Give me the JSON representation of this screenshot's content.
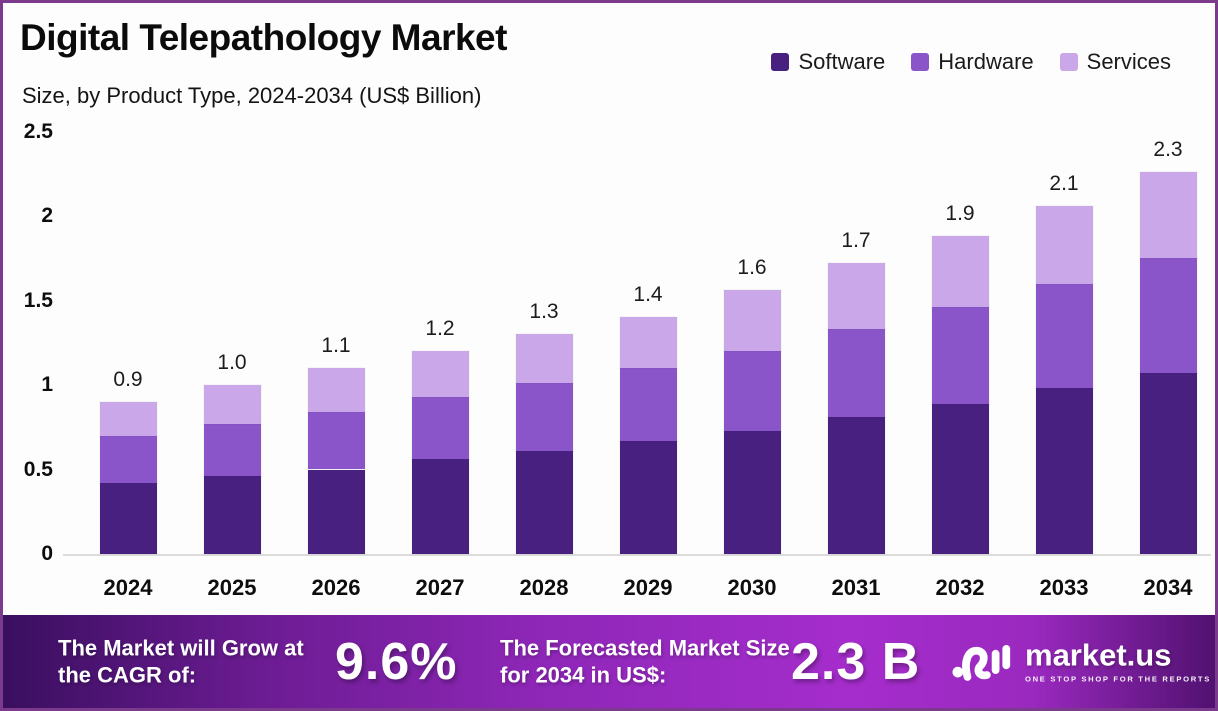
{
  "header": {
    "title": "Digital Telepathology Market",
    "subtitle": "Size, by Product Type, 2024-2034 (US$ Billion)"
  },
  "chart_data": {
    "type": "bar",
    "stacked": true,
    "title": "Digital Telepathology Market Size, by Product Type, 2024-2034 (US$ Billion)",
    "categories": [
      "2024",
      "2025",
      "2026",
      "2027",
      "2028",
      "2029",
      "2030",
      "2031",
      "2032",
      "2033",
      "2034"
    ],
    "series": [
      {
        "name": "Software",
        "color": "#48207f",
        "values": [
          0.42,
          0.46,
          0.5,
          0.56,
          0.61,
          0.67,
          0.73,
          0.81,
          0.89,
          0.98,
          1.07
        ]
      },
      {
        "name": "Hardware",
        "color": "#8a55c8",
        "values": [
          0.28,
          0.31,
          0.34,
          0.37,
          0.4,
          0.43,
          0.47,
          0.52,
          0.57,
          0.62,
          0.68
        ]
      },
      {
        "name": "Services",
        "color": "#c9a7e8",
        "values": [
          0.2,
          0.23,
          0.26,
          0.27,
          0.29,
          0.3,
          0.36,
          0.39,
          0.42,
          0.46,
          0.51
        ]
      }
    ],
    "totals": [
      "0.9",
      "1.0",
      "1.1",
      "1.2",
      "1.3",
      "1.4",
      "1.6",
      "1.7",
      "1.9",
      "2.1",
      "2.3"
    ],
    "y_ticks": [
      "2.5",
      "2",
      "1.5",
      "1",
      "0.5",
      "0"
    ],
    "ylim": [
      0,
      2.5
    ],
    "ylabel": "US$ Billion",
    "grid": false,
    "legend_position": "top-right"
  },
  "banner": {
    "cagr_label": "The Market will Grow at the CAGR of:",
    "cagr_value": "9.6%",
    "forecast_label": "The Forecasted Market Size for 2034 in US$:",
    "forecast_value": "2.3 B",
    "logo_text": "market.us",
    "logo_tagline": "ONE STOP SHOP FOR THE REPORTS"
  },
  "colors": {
    "frame_border": "#7b3a8c",
    "axis_line": "#dcdcdc",
    "banner_gradient_start": "#3a0f5f",
    "banner_gradient_mid": "#a52dcc",
    "banner_gradient_end": "#511170"
  }
}
